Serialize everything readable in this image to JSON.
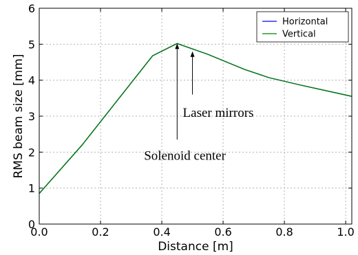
{
  "chart_data": {
    "type": "line",
    "title": "",
    "xlabel": "Distance [m]",
    "ylabel": "RMS beam size [mm]",
    "xlim": [
      0.0,
      1.02
    ],
    "ylim": [
      0,
      6
    ],
    "xticks": [
      0.0,
      0.2,
      0.4,
      0.6,
      0.8,
      1.0
    ],
    "xtick_labels": [
      "0.0",
      "0.2",
      "0.4",
      "0.6",
      "0.8",
      "1.0"
    ],
    "yticks": [
      0,
      1,
      2,
      3,
      4,
      5,
      6
    ],
    "ytick_labels": [
      "0",
      "1",
      "2",
      "3",
      "4",
      "5",
      "6"
    ],
    "grid": true,
    "legend_position": "top-right",
    "series": [
      {
        "name": "Horizontal",
        "color": "#0000ff",
        "x": [
          0.0,
          0.14,
          0.37,
          0.45,
          0.55,
          0.67,
          0.75,
          0.85,
          1.02
        ],
        "y": [
          0.85,
          2.2,
          4.68,
          5.02,
          4.72,
          4.3,
          4.07,
          3.87,
          3.55
        ]
      },
      {
        "name": "Vertical",
        "color": "#008000",
        "x": [
          0.0,
          0.14,
          0.37,
          0.45,
          0.55,
          0.67,
          0.75,
          0.85,
          1.02
        ],
        "y": [
          0.85,
          2.2,
          4.68,
          5.02,
          4.72,
          4.3,
          4.07,
          3.87,
          3.55
        ]
      }
    ],
    "annotations": [
      {
        "text": "Solenoid center",
        "x": 0.45,
        "y": 5.02,
        "text_x": 0.36,
        "text_y": 2.3
      },
      {
        "text": "Laser mirrors",
        "x": 0.5,
        "y": 4.8,
        "text_x": 0.5,
        "text_y": 3.4
      }
    ]
  }
}
